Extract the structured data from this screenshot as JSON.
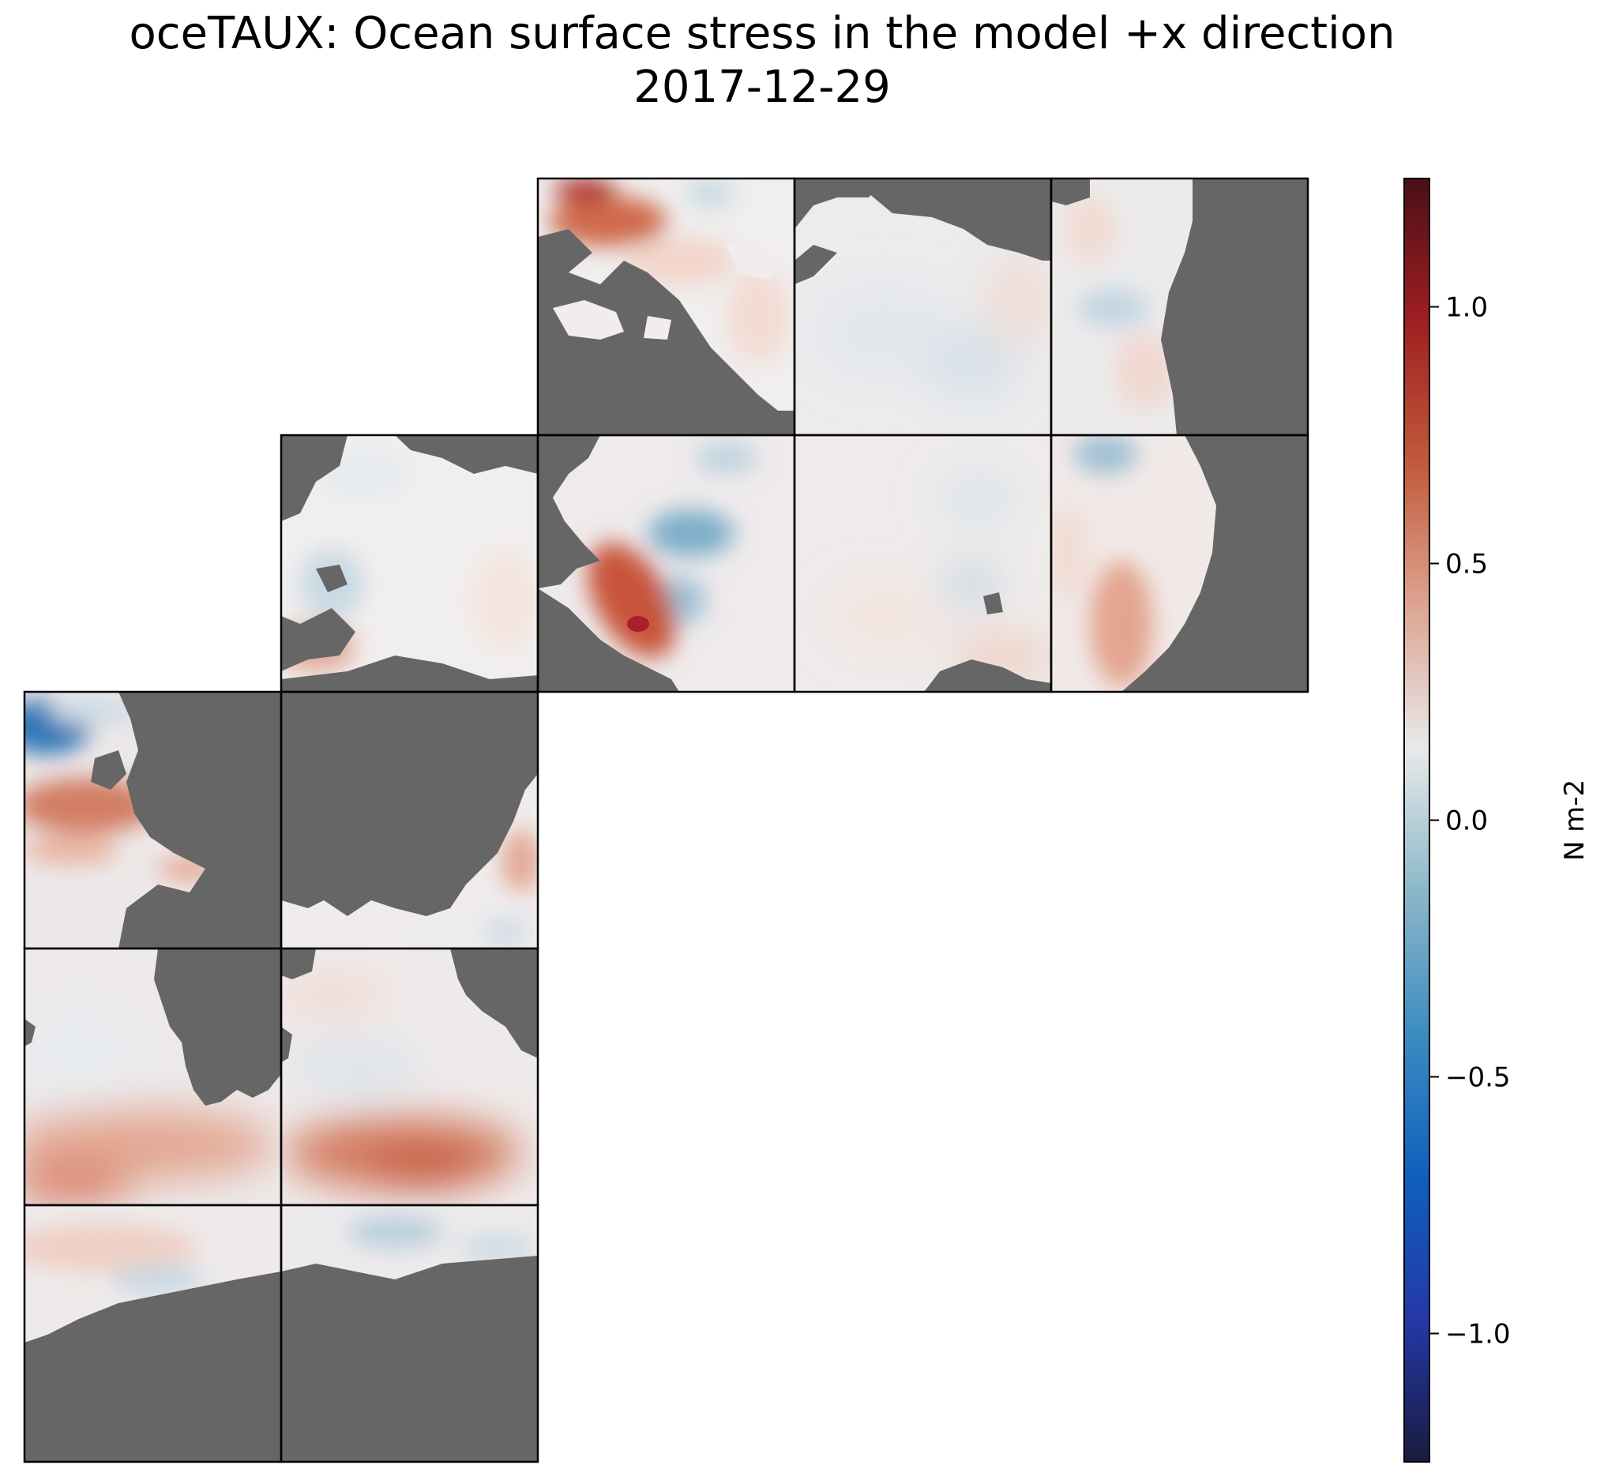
{
  "chart_data": {
    "type": "heatmap",
    "title": "oceTAUX: Ocean surface stress in the model +x direction",
    "subtitle": "2017-12-29",
    "colorbar": {
      "label": "N m-2",
      "vmin": -1.25,
      "vmax": 1.25,
      "ticks": [
        1.0,
        0.5,
        0.0,
        -0.5,
        -1.0
      ],
      "tick_labels": [
        "1.0",
        "0.5",
        "0.0",
        "−0.5",
        "−1.0"
      ],
      "colormap": [
        "#1a1b3e",
        "#2438a8",
        "#0f5fbf",
        "#3d8cbf",
        "#8cb7c9",
        "#e8e9ea",
        "#dda592",
        "#c25a3b",
        "#a01f22",
        "#4a0f17"
      ]
    },
    "land_color": "#666666",
    "grid": {
      "rows": 5,
      "cols": 5,
      "tiles": [
        {
          "row": 0,
          "col": 2,
          "mean": 0.12
        },
        {
          "row": 0,
          "col": 3,
          "mean": 0.0
        },
        {
          "row": 0,
          "col": 4,
          "mean": -0.02
        },
        {
          "row": 1,
          "col": 1,
          "mean": 0.02
        },
        {
          "row": 1,
          "col": 2,
          "mean": 0.05
        },
        {
          "row": 1,
          "col": 3,
          "mean": 0.01
        },
        {
          "row": 1,
          "col": 4,
          "mean": 0.05
        },
        {
          "row": 2,
          "col": 0,
          "mean": 0.15
        },
        {
          "row": 2,
          "col": 1,
          "mean": 0.05
        },
        {
          "row": 3,
          "col": 0,
          "mean": 0.1
        },
        {
          "row": 3,
          "col": 1,
          "mean": 0.2
        },
        {
          "row": 4,
          "col": 0,
          "mean": 0.05
        },
        {
          "row": 4,
          "col": 1,
          "mean": -0.02
        }
      ]
    }
  }
}
